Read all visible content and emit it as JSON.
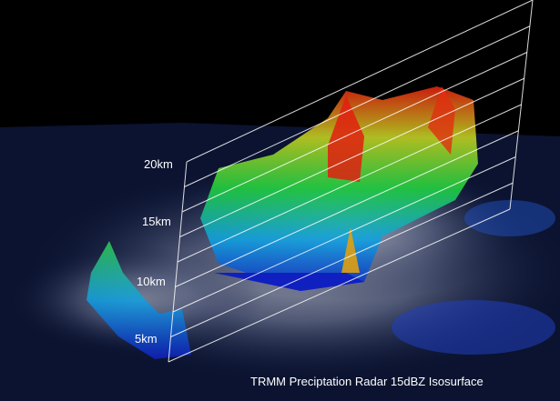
{
  "height_labels": [
    "20km",
    "15km",
    "10km",
    "5km"
  ],
  "caption": "TRMM Preciptation Radar 15dBZ Isosurface"
}
